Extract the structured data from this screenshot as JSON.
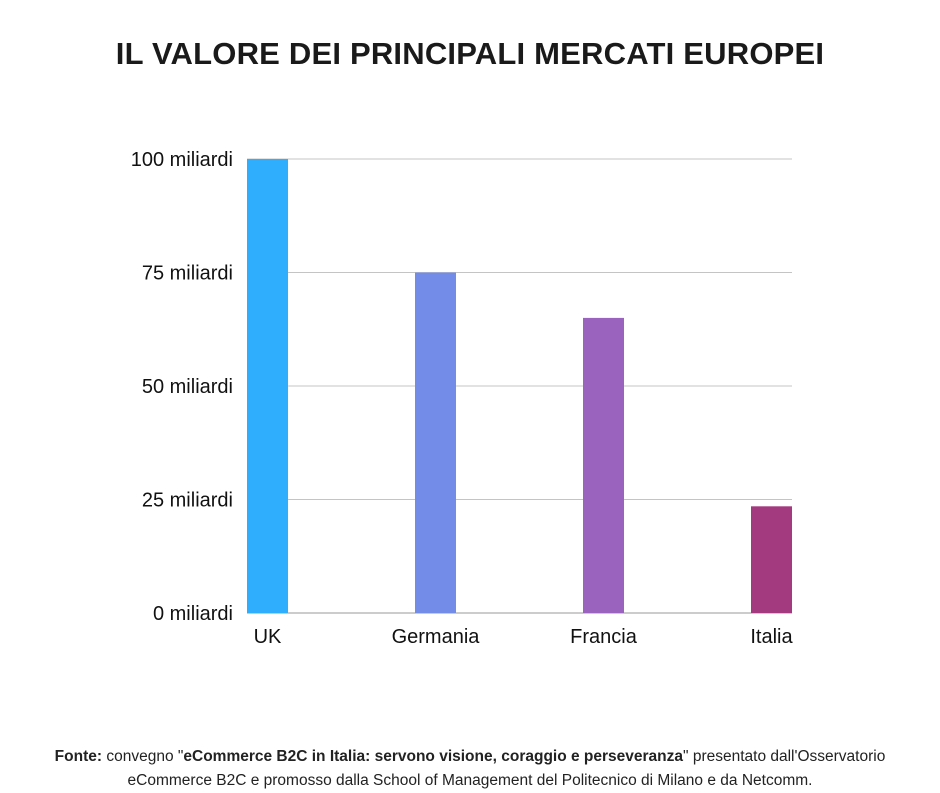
{
  "chart_data": {
    "type": "bar",
    "title": "IL VALORE DEI PRINCIPALI MERCATI EUROPEI",
    "categories": [
      "UK",
      "Germania",
      "Francia",
      "Italia"
    ],
    "values": [
      100,
      75,
      65,
      23.5
    ],
    "ylim": [
      0,
      100
    ],
    "yticks": [
      0,
      25,
      50,
      75,
      100
    ],
    "ytick_labels": [
      "0 miliardi",
      "25 miliardi",
      "50 miliardi",
      "75 miliardi",
      "100 miliardi"
    ],
    "bar_colors": [
      "#2eaefc",
      "#738ce8",
      "#9a63be",
      "#a3397e"
    ],
    "grid": true,
    "xlabel": "",
    "ylabel": ""
  },
  "source": {
    "label": "Fonte:",
    "text_before": " convegno \"",
    "event": "eCommerce B2C in Italia: servono visione, coraggio e perseveranza",
    "text_after": "\" presentato dall'Osservatorio eCommerce B2C e promosso dalla School of Management del Politecnico di Milano e da Netcomm."
  }
}
